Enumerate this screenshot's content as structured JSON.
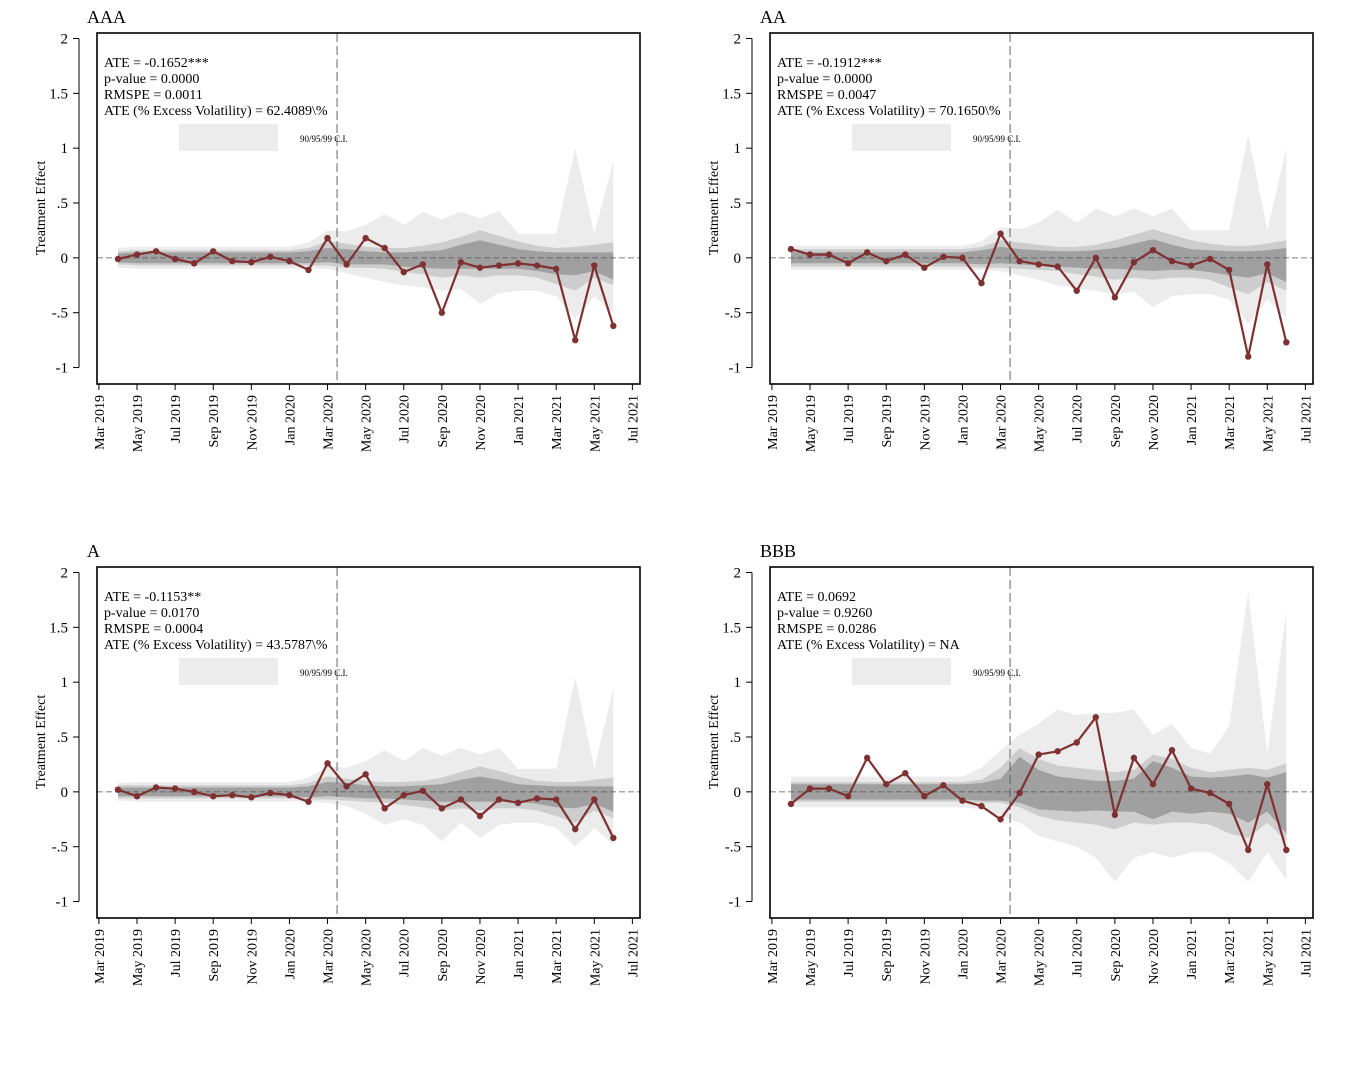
{
  "figure": {
    "y_axis_label": "Treatment Effect",
    "y_ticks": [
      {
        "value": 2,
        "label": "2"
      },
      {
        "value": 1.5,
        "label": "1.5"
      },
      {
        "value": 1,
        "label": "1"
      },
      {
        "value": 0.5,
        "label": ".5"
      },
      {
        "value": 0,
        "label": "0"
      },
      {
        "value": -0.5,
        "label": "-.5"
      },
      {
        "value": -1,
        "label": "-1"
      }
    ],
    "x_ticks": [
      {
        "value": 0,
        "label": "Mar 2019"
      },
      {
        "value": 2,
        "label": "May 2019"
      },
      {
        "value": 4,
        "label": "Jul 2019"
      },
      {
        "value": 6,
        "label": "Sep 2019"
      },
      {
        "value": 8,
        "label": "Nov 2019"
      },
      {
        "value": 10,
        "label": "Jan 2020"
      },
      {
        "value": 12,
        "label": "Mar 2020"
      },
      {
        "value": 14,
        "label": "May 2020"
      },
      {
        "value": 16,
        "label": "Jul 2020"
      },
      {
        "value": 18,
        "label": "Sep 2020"
      },
      {
        "value": 20,
        "label": "Nov 2020"
      },
      {
        "value": 22,
        "label": "Jan 2021"
      },
      {
        "value": 24,
        "label": "Mar 2021"
      },
      {
        "value": 26,
        "label": "May 2021"
      },
      {
        "value": 28,
        "label": "Jul 2021"
      }
    ],
    "ci_legend_label": "90/95/99 C.I.",
    "colors": {
      "series": "#7f3030",
      "band_90": "#a0a0a0",
      "band_95": "#cdcdcd",
      "band_99": "#ececec",
      "legend_swatch": "#ececec"
    }
  },
  "chart_data": [
    {
      "type": "line",
      "panel_title": "AAA",
      "stats": [
        "ATE = -0.1652***",
        "p-value = 0.0000",
        "RMSPE = 0.0011",
        "ATE (% Excess Volatility) = 62.4089\\%"
      ],
      "ylim": [
        -1.15,
        2.05
      ],
      "xlim": [
        -0.1,
        28.4
      ],
      "treatment_x": 12.5,
      "x": [
        1,
        2,
        3,
        4,
        5,
        6,
        7,
        8,
        9,
        10,
        11,
        12,
        13,
        14,
        15,
        16,
        17,
        18,
        19,
        20,
        21,
        22,
        23,
        24,
        25,
        26,
        27
      ],
      "values": [
        -0.01,
        0.03,
        0.06,
        -0.01,
        -0.05,
        0.06,
        -0.03,
        -0.04,
        0.01,
        -0.03,
        -0.11,
        0.18,
        -0.06,
        0.18,
        0.09,
        -0.13,
        -0.06,
        -0.5,
        -0.04,
        -0.09,
        -0.07,
        -0.05,
        -0.07,
        -0.1,
        -0.75,
        -0.07,
        -0.62
      ],
      "ci90_upper": [
        0.04,
        0.05,
        0.05,
        0.05,
        0.05,
        0.05,
        0.05,
        0.05,
        0.05,
        0.05,
        0.06,
        0.09,
        0.08,
        0.06,
        0.05,
        0.05,
        0.06,
        0.07,
        0.12,
        0.16,
        0.12,
        0.08,
        0.06,
        0.05,
        0.05,
        0.05,
        0.05
      ],
      "ci90_lower": [
        -0.04,
        -0.05,
        -0.05,
        -0.05,
        -0.05,
        -0.05,
        -0.05,
        -0.05,
        -0.05,
        -0.05,
        -0.05,
        -0.04,
        -0.06,
        -0.06,
        -0.06,
        -0.08,
        -0.09,
        -0.1,
        -0.1,
        -0.1,
        -0.1,
        -0.1,
        -0.12,
        -0.15,
        -0.16,
        -0.12,
        -0.2
      ],
      "ci95_upper": [
        0.06,
        0.07,
        0.07,
        0.07,
        0.07,
        0.07,
        0.07,
        0.07,
        0.07,
        0.07,
        0.09,
        0.15,
        0.13,
        0.1,
        0.09,
        0.09,
        0.11,
        0.14,
        0.19,
        0.25,
        0.2,
        0.15,
        0.11,
        0.09,
        0.1,
        0.12,
        0.14
      ],
      "ci95_lower": [
        -0.06,
        -0.07,
        -0.07,
        -0.07,
        -0.07,
        -0.07,
        -0.07,
        -0.07,
        -0.07,
        -0.07,
        -0.07,
        -0.07,
        -0.09,
        -0.09,
        -0.1,
        -0.13,
        -0.15,
        -0.18,
        -0.16,
        -0.18,
        -0.16,
        -0.16,
        -0.18,
        -0.24,
        -0.3,
        -0.18,
        -0.25
      ],
      "ci99_upper": [
        0.09,
        0.1,
        0.1,
        0.1,
        0.1,
        0.1,
        0.1,
        0.1,
        0.1,
        0.1,
        0.14,
        0.25,
        0.24,
        0.3,
        0.4,
        0.3,
        0.42,
        0.35,
        0.42,
        0.36,
        0.43,
        0.22,
        0.22,
        0.22,
        1.0,
        0.22,
        0.88
      ],
      "ci99_lower": [
        -0.09,
        -0.1,
        -0.1,
        -0.1,
        -0.1,
        -0.1,
        -0.1,
        -0.1,
        -0.1,
        -0.1,
        -0.1,
        -0.1,
        -0.14,
        -0.18,
        -0.22,
        -0.25,
        -0.27,
        -0.3,
        -0.28,
        -0.42,
        -0.32,
        -0.3,
        -0.3,
        -0.35,
        -0.55,
        -0.35,
        -0.5
      ]
    },
    {
      "type": "line",
      "panel_title": "AA",
      "stats": [
        "ATE = -0.1912***",
        "p-value = 0.0000",
        "RMSPE = 0.0047",
        "ATE (% Excess Volatility) = 70.1650\\%"
      ],
      "ylim": [
        -1.15,
        2.05
      ],
      "xlim": [
        -0.1,
        28.4
      ],
      "treatment_x": 12.5,
      "x": [
        1,
        2,
        3,
        4,
        5,
        6,
        7,
        8,
        9,
        10,
        11,
        12,
        13,
        14,
        15,
        16,
        17,
        18,
        19,
        20,
        21,
        22,
        23,
        24,
        25,
        26,
        27
      ],
      "values": [
        0.08,
        0.03,
        0.03,
        -0.05,
        0.05,
        -0.03,
        0.03,
        -0.09,
        0.01,
        0.0,
        -0.23,
        0.22,
        -0.03,
        -0.06,
        -0.08,
        -0.3,
        0.0,
        -0.36,
        -0.04,
        0.07,
        -0.03,
        -0.07,
        -0.01,
        -0.11,
        -0.9,
        -0.06,
        -0.77
      ],
      "ci90_upper": [
        0.05,
        0.05,
        0.05,
        0.05,
        0.05,
        0.05,
        0.05,
        0.05,
        0.05,
        0.05,
        0.07,
        0.1,
        0.08,
        0.07,
        0.06,
        0.06,
        0.07,
        0.09,
        0.13,
        0.17,
        0.12,
        0.08,
        0.07,
        0.06,
        0.06,
        0.07,
        0.09
      ],
      "ci90_lower": [
        -0.05,
        -0.05,
        -0.05,
        -0.05,
        -0.05,
        -0.05,
        -0.05,
        -0.05,
        -0.05,
        -0.05,
        -0.06,
        -0.05,
        -0.06,
        -0.07,
        -0.08,
        -0.09,
        -0.1,
        -0.1,
        -0.11,
        -0.12,
        -0.11,
        -0.11,
        -0.13,
        -0.16,
        -0.18,
        -0.14,
        -0.22
      ],
      "ci95_upper": [
        0.08,
        0.08,
        0.08,
        0.08,
        0.08,
        0.08,
        0.08,
        0.08,
        0.08,
        0.08,
        0.1,
        0.16,
        0.14,
        0.12,
        0.1,
        0.1,
        0.12,
        0.16,
        0.21,
        0.26,
        0.21,
        0.16,
        0.13,
        0.11,
        0.11,
        0.13,
        0.16
      ],
      "ci95_lower": [
        -0.08,
        -0.08,
        -0.08,
        -0.08,
        -0.08,
        -0.08,
        -0.08,
        -0.08,
        -0.08,
        -0.08,
        -0.09,
        -0.09,
        -0.1,
        -0.11,
        -0.12,
        -0.15,
        -0.17,
        -0.2,
        -0.18,
        -0.2,
        -0.18,
        -0.18,
        -0.2,
        -0.27,
        -0.33,
        -0.22,
        -0.3
      ],
      "ci99_upper": [
        0.11,
        0.11,
        0.11,
        0.11,
        0.11,
        0.11,
        0.11,
        0.11,
        0.11,
        0.11,
        0.15,
        0.28,
        0.26,
        0.32,
        0.44,
        0.32,
        0.45,
        0.38,
        0.45,
        0.38,
        0.45,
        0.25,
        0.25,
        0.25,
        1.12,
        0.25,
        1.0
      ],
      "ci99_lower": [
        -0.11,
        -0.11,
        -0.11,
        -0.11,
        -0.11,
        -0.11,
        -0.11,
        -0.11,
        -0.11,
        -0.11,
        -0.11,
        -0.12,
        -0.16,
        -0.2,
        -0.25,
        -0.28,
        -0.3,
        -0.33,
        -0.31,
        -0.45,
        -0.35,
        -0.33,
        -0.33,
        -0.38,
        -0.6,
        -0.38,
        -0.55
      ]
    },
    {
      "type": "line",
      "panel_title": "A",
      "stats": [
        "ATE = -0.1153**",
        "p-value = 0.0170",
        "RMSPE = 0.0004",
        "ATE (% Excess Volatility) = 43.5787\\%"
      ],
      "ylim": [
        -1.15,
        2.05
      ],
      "xlim": [
        -0.1,
        28.4
      ],
      "treatment_x": 12.5,
      "x": [
        1,
        2,
        3,
        4,
        5,
        6,
        7,
        8,
        9,
        10,
        11,
        12,
        13,
        14,
        15,
        16,
        17,
        18,
        19,
        20,
        21,
        22,
        23,
        24,
        25,
        26,
        27
      ],
      "values": [
        0.02,
        -0.04,
        0.04,
        0.03,
        0.0,
        -0.04,
        -0.03,
        -0.05,
        -0.01,
        -0.03,
        -0.09,
        0.26,
        0.05,
        0.16,
        -0.15,
        -0.03,
        0.01,
        -0.15,
        -0.07,
        -0.22,
        -0.07,
        -0.1,
        -0.06,
        -0.07,
        -0.34,
        -0.07,
        -0.42
      ],
      "ci90_upper": [
        0.04,
        0.04,
        0.04,
        0.04,
        0.04,
        0.04,
        0.04,
        0.04,
        0.04,
        0.04,
        0.05,
        0.09,
        0.08,
        0.06,
        0.05,
        0.05,
        0.06,
        0.07,
        0.11,
        0.14,
        0.11,
        0.07,
        0.06,
        0.05,
        0.05,
        0.05,
        0.05
      ],
      "ci90_lower": [
        -0.04,
        -0.04,
        -0.04,
        -0.04,
        -0.04,
        -0.04,
        -0.04,
        -0.04,
        -0.04,
        -0.04,
        -0.05,
        -0.04,
        -0.05,
        -0.06,
        -0.06,
        -0.07,
        -0.08,
        -0.09,
        -0.09,
        -0.09,
        -0.09,
        -0.09,
        -0.11,
        -0.14,
        -0.15,
        -0.11,
        -0.18
      ],
      "ci95_upper": [
        0.06,
        0.06,
        0.06,
        0.06,
        0.06,
        0.06,
        0.06,
        0.06,
        0.06,
        0.06,
        0.08,
        0.14,
        0.12,
        0.1,
        0.09,
        0.09,
        0.1,
        0.13,
        0.18,
        0.23,
        0.19,
        0.14,
        0.1,
        0.09,
        0.09,
        0.11,
        0.13
      ],
      "ci95_lower": [
        -0.06,
        -0.06,
        -0.06,
        -0.06,
        -0.06,
        -0.06,
        -0.06,
        -0.06,
        -0.06,
        -0.06,
        -0.07,
        -0.07,
        -0.08,
        -0.09,
        -0.1,
        -0.12,
        -0.14,
        -0.17,
        -0.15,
        -0.17,
        -0.15,
        -0.15,
        -0.17,
        -0.22,
        -0.28,
        -0.17,
        -0.24
      ],
      "ci99_upper": [
        0.08,
        0.09,
        0.09,
        0.09,
        0.09,
        0.09,
        0.09,
        0.09,
        0.09,
        0.09,
        0.13,
        0.23,
        0.22,
        0.28,
        0.38,
        0.28,
        0.4,
        0.33,
        0.4,
        0.34,
        0.4,
        0.21,
        0.21,
        0.21,
        1.05,
        0.21,
        0.95
      ],
      "ci99_lower": [
        -0.08,
        -0.09,
        -0.09,
        -0.09,
        -0.09,
        -0.09,
        -0.09,
        -0.09,
        -0.09,
        -0.09,
        -0.09,
        -0.1,
        -0.13,
        -0.2,
        -0.3,
        -0.25,
        -0.3,
        -0.45,
        -0.28,
        -0.42,
        -0.3,
        -0.28,
        -0.28,
        -0.33,
        -0.5,
        -0.33,
        -0.48
      ]
    },
    {
      "type": "line",
      "panel_title": "BBB",
      "stats": [
        "ATE = 0.0692",
        "p-value = 0.9260",
        "RMSPE = 0.0286",
        "ATE (% Excess Volatility) = NA"
      ],
      "ylim": [
        -1.15,
        2.05
      ],
      "xlim": [
        -0.1,
        28.4
      ],
      "treatment_x": 12.5,
      "x": [
        1,
        2,
        3,
        4,
        5,
        6,
        7,
        8,
        9,
        10,
        11,
        12,
        13,
        14,
        15,
        16,
        17,
        18,
        19,
        20,
        21,
        22,
        23,
        24,
        25,
        26,
        27
      ],
      "values": [
        -0.11,
        0.03,
        0.03,
        -0.04,
        0.31,
        0.07,
        0.17,
        -0.04,
        0.06,
        -0.08,
        -0.13,
        -0.25,
        -0.01,
        0.34,
        0.37,
        0.45,
        0.68,
        -0.21,
        0.31,
        0.07,
        0.38,
        0.03,
        -0.01,
        -0.11,
        -0.53,
        0.07,
        -0.53
      ],
      "ci90_upper": [
        0.07,
        0.07,
        0.07,
        0.07,
        0.07,
        0.07,
        0.07,
        0.07,
        0.07,
        0.07,
        0.08,
        0.12,
        0.32,
        0.2,
        0.14,
        0.12,
        0.1,
        0.1,
        0.12,
        0.28,
        0.22,
        0.14,
        0.13,
        0.14,
        0.16,
        0.13,
        0.18
      ],
      "ci90_lower": [
        -0.07,
        -0.07,
        -0.07,
        -0.07,
        -0.07,
        -0.07,
        -0.07,
        -0.07,
        -0.07,
        -0.07,
        -0.08,
        -0.08,
        -0.1,
        -0.16,
        -0.17,
        -0.18,
        -0.17,
        -0.18,
        -0.18,
        -0.25,
        -0.18,
        -0.2,
        -0.18,
        -0.2,
        -0.28,
        -0.18,
        -0.38
      ],
      "ci95_upper": [
        0.09,
        0.09,
        0.09,
        0.09,
        0.09,
        0.09,
        0.09,
        0.09,
        0.09,
        0.09,
        0.11,
        0.22,
        0.4,
        0.3,
        0.24,
        0.22,
        0.2,
        0.18,
        0.2,
        0.34,
        0.3,
        0.22,
        0.18,
        0.2,
        0.22,
        0.2,
        0.26
      ],
      "ci95_lower": [
        -0.09,
        -0.09,
        -0.09,
        -0.09,
        -0.09,
        -0.09,
        -0.09,
        -0.09,
        -0.09,
        -0.09,
        -0.1,
        -0.1,
        -0.14,
        -0.22,
        -0.26,
        -0.28,
        -0.3,
        -0.34,
        -0.28,
        -0.3,
        -0.28,
        -0.28,
        -0.3,
        -0.38,
        -0.42,
        -0.28,
        -0.45
      ],
      "ci99_upper": [
        0.14,
        0.14,
        0.14,
        0.14,
        0.14,
        0.14,
        0.14,
        0.14,
        0.14,
        0.14,
        0.22,
        0.38,
        0.52,
        0.62,
        0.75,
        0.7,
        0.72,
        0.72,
        0.75,
        0.52,
        0.62,
        0.4,
        0.35,
        0.6,
        1.82,
        0.35,
        1.65
      ],
      "ci99_lower": [
        -0.14,
        -0.14,
        -0.14,
        -0.14,
        -0.14,
        -0.14,
        -0.14,
        -0.14,
        -0.14,
        -0.14,
        -0.16,
        -0.22,
        -0.28,
        -0.4,
        -0.45,
        -0.5,
        -0.6,
        -0.82,
        -0.6,
        -0.55,
        -0.6,
        -0.55,
        -0.55,
        -0.65,
        -0.82,
        -0.55,
        -0.8
      ]
    }
  ]
}
